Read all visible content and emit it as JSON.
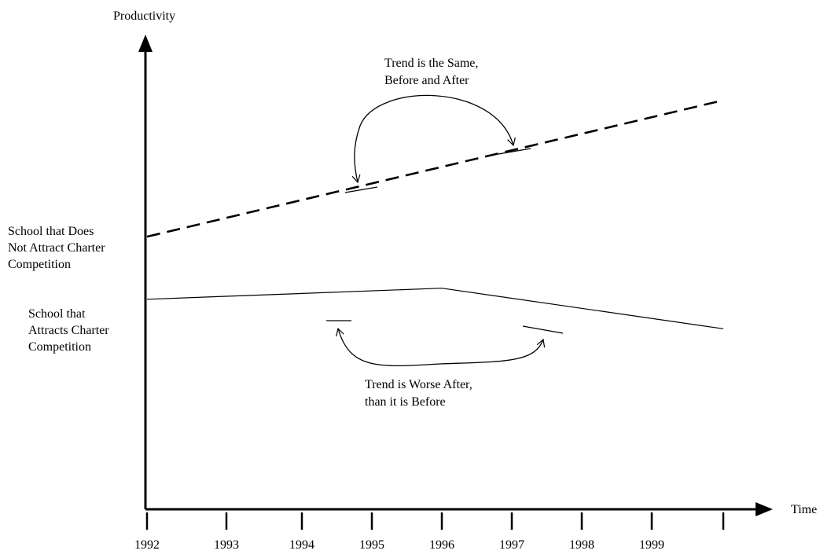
{
  "chart_data": {
    "type": "line",
    "ylabel": "Productivity",
    "xlabel": "Time",
    "categories": [
      "1992",
      "1993",
      "1994",
      "1995",
      "1996",
      "1997",
      "1998",
      "1999"
    ],
    "series": [
      {
        "name": "School that Does Not Attract Charter Competition",
        "label_lines": [
          "School that Does",
          "Not Attract Charter",
          "Competition"
        ],
        "style": "dashed",
        "x": [
          1992,
          2000
        ],
        "values": [
          7.4,
          11.1
        ]
      },
      {
        "name": "School that Attracts Charter Competition",
        "label_lines": [
          "School that",
          "Attracts Charter",
          "Competition"
        ],
        "style": "solid",
        "x": [
          1992,
          1996,
          2000
        ],
        "values": [
          5.7,
          6.0,
          4.9
        ]
      }
    ],
    "annotations": [
      {
        "lines": [
          "Trend is the Same,",
          "Before and After"
        ]
      },
      {
        "lines": [
          "Trend is Worse After,",
          "than it is Before"
        ]
      }
    ],
    "xlim": [
      1992,
      2000
    ],
    "ylim": [
      0,
      12.5
    ],
    "grid": false,
    "legend": "none",
    "colors": {
      "line": "#000000",
      "background": "#ffffff"
    }
  }
}
